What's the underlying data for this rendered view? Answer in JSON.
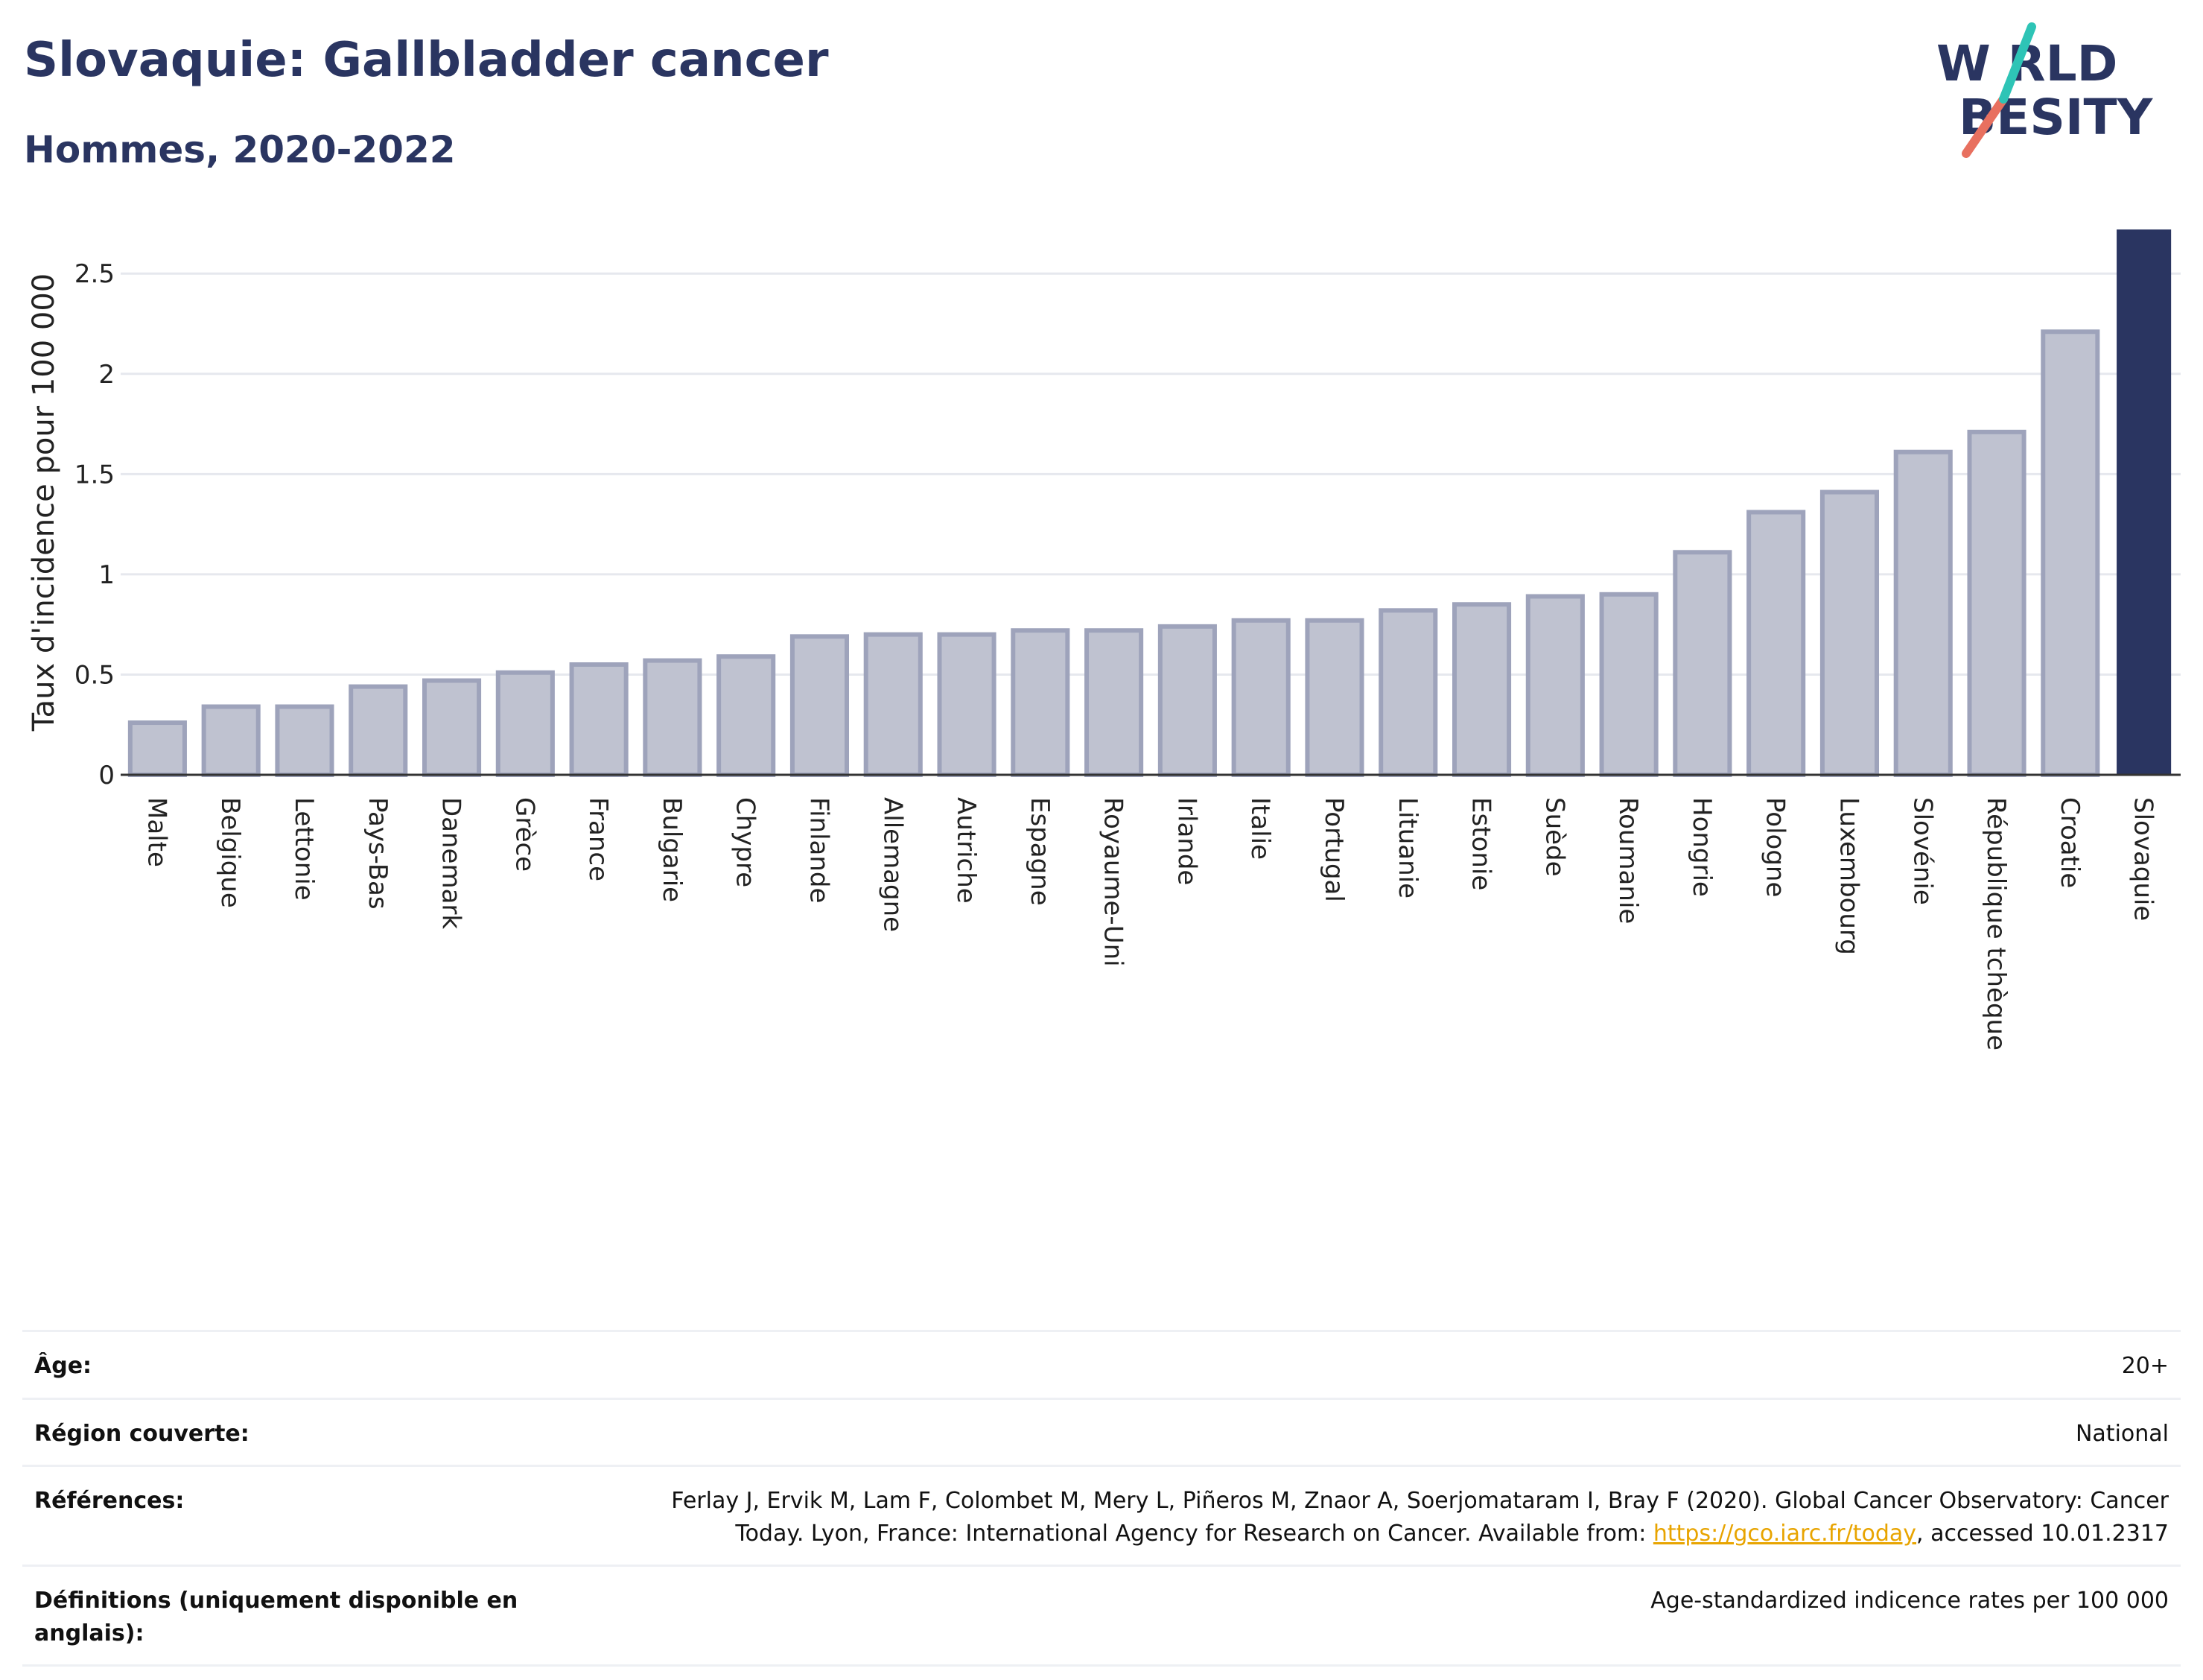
{
  "header": {
    "title": "Slovaquie: Gallbladder cancer",
    "subtitle": "Hommes, 2020-2022"
  },
  "logo": {
    "line1": "W RLD",
    "line2": "BESITY",
    "text": "WORLD OBESITY"
  },
  "colors": {
    "title": "#2a3561",
    "bar_default_fill": "#bfc2d0",
    "bar_default_stroke": "#9ea3bb",
    "bar_highlight": "#2a3561",
    "logo_teal": "#2ec4b6",
    "logo_coral": "#e8705f",
    "link": "#e8a400"
  },
  "chart_data": {
    "type": "bar",
    "ylabel": "Taux d'incidence pour 100 000",
    "ylim": [
      0,
      2.72
    ],
    "yticks": [
      0,
      0.5,
      1,
      1.5,
      2,
      2.5
    ],
    "ytick_labels": [
      "0",
      "0.5",
      "1",
      "1.5",
      "2",
      "2.5"
    ],
    "grid": true,
    "highlight": "Slovaquie",
    "categories": [
      "Malte",
      "Belgique",
      "Lettonie",
      "Pays-Bas",
      "Danemark",
      "Grèce",
      "France",
      "Bulgarie",
      "Chypre",
      "Finlande",
      "Allemagne",
      "Autriche",
      "Espagne",
      "Royaume-Uni",
      "Irlande",
      "Italie",
      "Portugal",
      "Lituanie",
      "Estonie",
      "Suède",
      "Roumanie",
      "Hongrie",
      "Pologne",
      "Luxembourg",
      "Slovénie",
      "République tchèque",
      "Croatie",
      "Slovaquie"
    ],
    "values": [
      0.26,
      0.34,
      0.34,
      0.44,
      0.47,
      0.51,
      0.55,
      0.57,
      0.59,
      0.69,
      0.7,
      0.7,
      0.72,
      0.72,
      0.74,
      0.77,
      0.77,
      0.82,
      0.85,
      0.89,
      0.9,
      1.11,
      1.31,
      1.41,
      1.61,
      1.71,
      2.21,
      2.72
    ]
  },
  "info": {
    "age_label": "Âge:",
    "age_value": "20+",
    "region_label": "Région couverte:",
    "region_value": "National",
    "refs_label": "Références:",
    "refs_line1": "Ferlay J, Ervik M, Lam F, Colombet M, Mery L, Piñeros M, Znaor A, Soerjomataram I, Bray F (2020). Global Cancer Observatory: Cancer",
    "refs_line2_pre": "Today. Lyon, France: International Agency for Research on Cancer. Available from: ",
    "refs_link": "https://gco.iarc.fr/today",
    "refs_line2_post": ", accessed 10.01.2317",
    "defs_label": "Définitions (uniquement disponible en anglais):",
    "defs_value": "Age-standardized indicence rates per 100 000"
  }
}
